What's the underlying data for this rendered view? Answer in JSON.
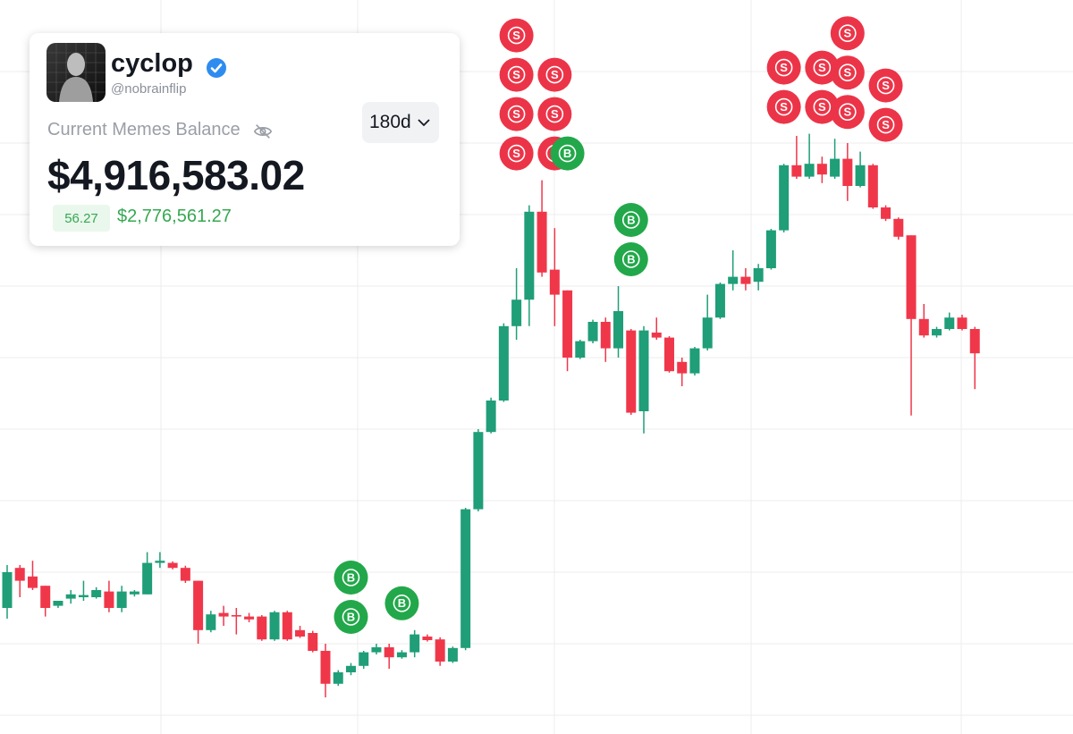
{
  "card": {
    "name": "cyclop",
    "handle": "@nobrainflip",
    "balance_label": "Current Memes Balance",
    "period": "180d",
    "balance": "$4,916,583.02",
    "change_percent": "56.27",
    "change_value": "$2,776,561.27"
  },
  "chart_data": {
    "type": "candlestick",
    "ylim": [
      0,
      100
    ],
    "up_color": "#1f9e78",
    "down_color": "#f0374a",
    "open": [
      15,
      20.6,
      19.4,
      18.1,
      15.3,
      16.3,
      16.5,
      16.5,
      17.3,
      15,
      16.9,
      16.9,
      21.3,
      21.3,
      20.6,
      18.8,
      11.9,
      14.3,
      14,
      13.8,
      13.8,
      10.6,
      14.4,
      11.9,
      11.5,
      9,
      4.4,
      6,
      6.9,
      8.8,
      9.5,
      8.1,
      8.8,
      11,
      10.6,
      7.5,
      9.4,
      28.8,
      39.6,
      44,
      54.4,
      58.1,
      70.4,
      62.3,
      59.4,
      50,
      52.3,
      55,
      51.3,
      53.8,
      42.5,
      53.5,
      52.8,
      49.4,
      47.8,
      51.3,
      55.6,
      60.3,
      61.3,
      60.6,
      62.5,
      67.8,
      76.9,
      75.3,
      77.1,
      75.3,
      77.8,
      74,
      76.9,
      71,
      69.4,
      67.1,
      55.4,
      53.1,
      54,
      55.6,
      54
    ],
    "high": [
      21,
      21,
      21.6,
      18.1,
      16,
      17.5,
      18.8,
      17.9,
      18.8,
      18.1,
      17.5,
      22.8,
      22.8,
      21.5,
      20.9,
      18.8,
      14.6,
      15.3,
      15,
      14.3,
      14,
      14.6,
      14.6,
      12.5,
      11.8,
      10,
      6.3,
      7.3,
      9,
      10,
      10,
      9.1,
      11.9,
      11.3,
      10.9,
      9.6,
      29,
      40,
      44.4,
      54.8,
      62.5,
      71.3,
      74.8,
      68.1,
      59.4,
      52.5,
      55.3,
      55.6,
      60,
      54,
      54.4,
      55.6,
      53,
      50,
      51.5,
      58.8,
      60.5,
      65,
      62.5,
      63.1,
      68,
      77.1,
      81,
      81.3,
      78.1,
      80.6,
      80,
      78.8,
      77.1,
      71.3,
      69.6,
      67.1,
      57.5,
      54.3,
      56.3,
      56,
      54.3
    ],
    "low": [
      13.5,
      16.5,
      17.5,
      13.8,
      15,
      15.6,
      16,
      16.3,
      14.4,
      14.4,
      16.6,
      16.9,
      20.6,
      20.4,
      18.5,
      10,
      11.6,
      12.5,
      11.3,
      13,
      10.4,
      10.4,
      10.4,
      10.8,
      8.8,
      2.5,
      4.1,
      5.6,
      6.5,
      8.5,
      6.5,
      7.9,
      8.1,
      10.3,
      6.9,
      7.3,
      9.1,
      28.5,
      39.4,
      43.8,
      52.5,
      54.4,
      61.3,
      54.4,
      48.1,
      49.8,
      52,
      49.4,
      50,
      42,
      39.4,
      52.5,
      47.9,
      46,
      47.5,
      51,
      55.4,
      59.4,
      59.4,
      59.4,
      62.3,
      67.5,
      75,
      75,
      74.4,
      75,
      71.9,
      73.8,
      70.8,
      69.1,
      66.5,
      41.9,
      52.8,
      52.8,
      53.8,
      53.8,
      45.6
    ],
    "close": [
      20,
      18.8,
      17.8,
      15,
      16,
      16.9,
      16.8,
      17.5,
      15,
      17.3,
      17.3,
      21.3,
      21.6,
      20.6,
      18.8,
      11.9,
      14.1,
      13.8,
      13.8,
      13.4,
      10.6,
      14.4,
      10.6,
      11,
      9,
      4.4,
      6,
      6.9,
      8.8,
      9.5,
      8.1,
      8.8,
      11.3,
      10.5,
      7.5,
      9.4,
      28.8,
      39.6,
      44,
      54.4,
      58.1,
      70.4,
      61.9,
      58.8,
      50,
      52.3,
      55,
      51.3,
      56.5,
      42.3,
      53.8,
      52.8,
      48.1,
      47.8,
      51.3,
      55.6,
      60.3,
      61.3,
      60.3,
      62.5,
      67.8,
      76.9,
      75.3,
      77.1,
      75.6,
      77.8,
      74,
      76.9,
      71,
      69.4,
      66.9,
      55.4,
      53.1,
      54,
      55.6,
      54,
      50.6
    ],
    "markers": [
      {
        "label": "B",
        "candle": 27,
        "color": "#22a84a"
      },
      {
        "label": "B",
        "candle": 27,
        "color": "#22a84a"
      },
      {
        "label": "B",
        "candle": 31,
        "color": "#22a84a"
      },
      {
        "label": "S",
        "candle": 40,
        "color": "#ec3448"
      },
      {
        "label": "S",
        "candle": 40,
        "color": "#ec3448"
      },
      {
        "label": "S",
        "candle": 40,
        "color": "#ec3448"
      },
      {
        "label": "S",
        "candle": 40,
        "color": "#ec3448"
      },
      {
        "label": "S",
        "candle": 43,
        "color": "#ec3448"
      },
      {
        "label": "S",
        "candle": 43,
        "color": "#ec3448"
      },
      {
        "label": "S",
        "candle": 43,
        "color": "#ec3448"
      },
      {
        "label": "B",
        "candle": 44,
        "color": "#22a84a"
      },
      {
        "label": "B",
        "candle": 49,
        "color": "#22a84a"
      },
      {
        "label": "B",
        "candle": 49,
        "color": "#22a84a"
      },
      {
        "label": "S",
        "candle": 61,
        "color": "#ec3448"
      },
      {
        "label": "S",
        "candle": 61,
        "color": "#ec3448"
      },
      {
        "label": "S",
        "candle": 64,
        "color": "#ec3448"
      },
      {
        "label": "S",
        "candle": 64,
        "color": "#ec3448"
      },
      {
        "label": "S",
        "candle": 66,
        "color": "#ec3448"
      },
      {
        "label": "S",
        "candle": 66,
        "color": "#ec3448"
      },
      {
        "label": "S",
        "candle": 66,
        "color": "#ec3448"
      },
      {
        "label": "S",
        "candle": 69,
        "color": "#ec3448"
      },
      {
        "label": "S",
        "candle": 69,
        "color": "#ec3448"
      }
    ]
  }
}
